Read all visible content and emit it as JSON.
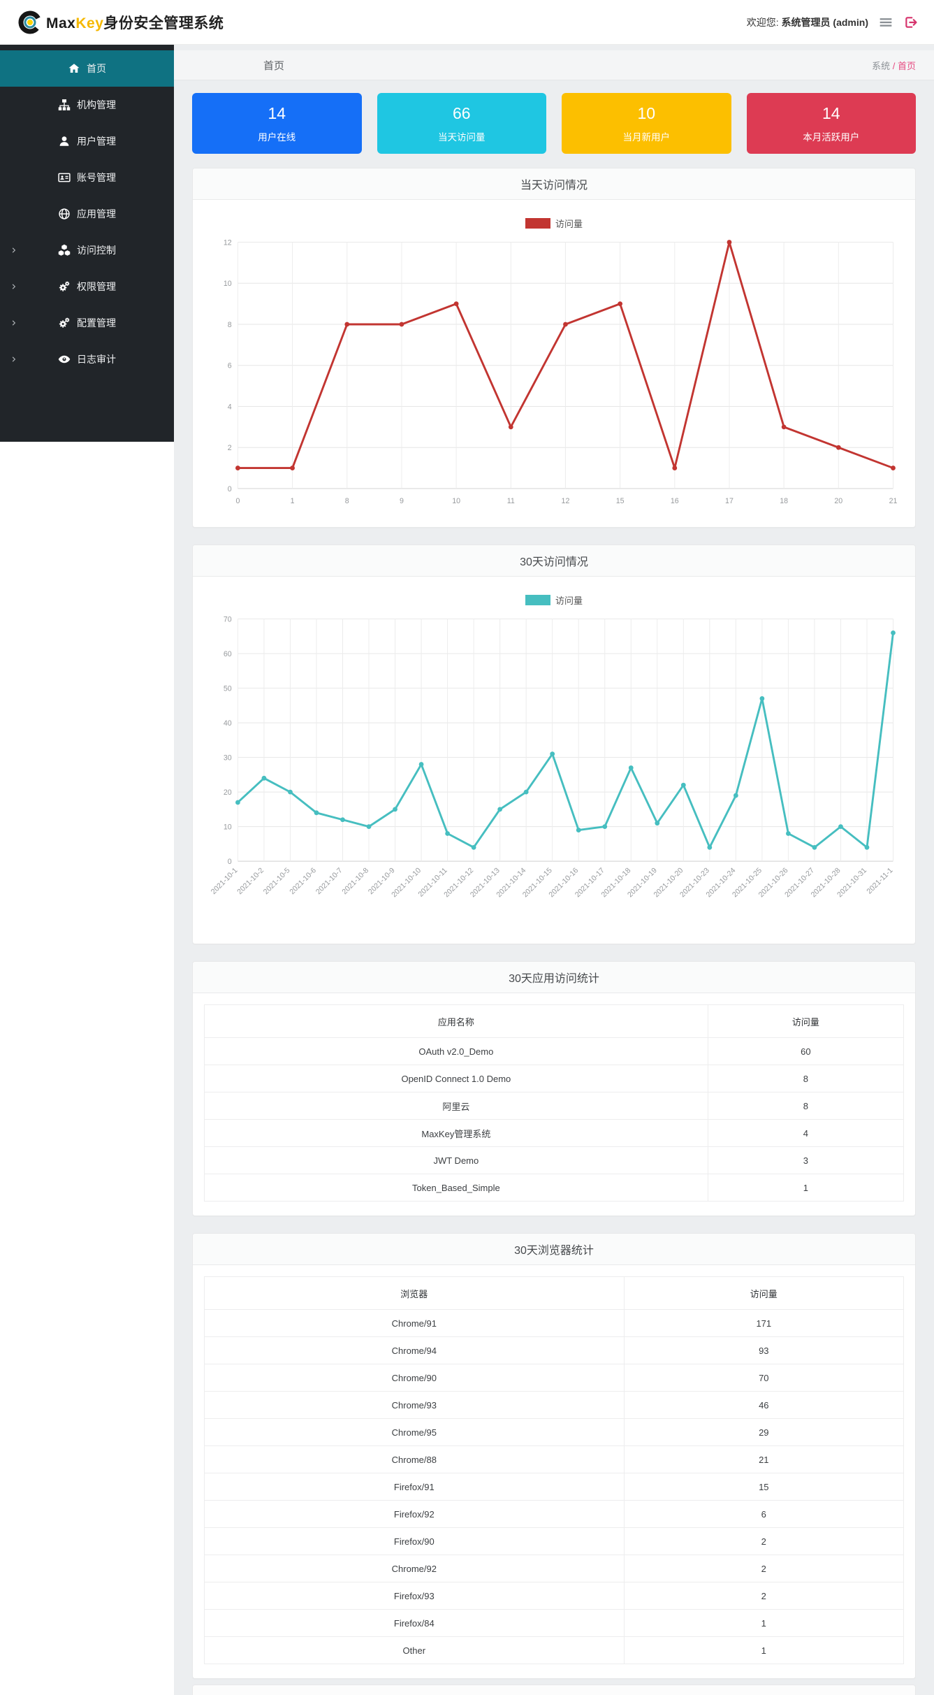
{
  "header": {
    "brand_max": "Max",
    "brand_key": "Key",
    "brand_suffix": "身份安全管理系统",
    "welcome_prefix": "欢迎您:",
    "welcome_user": "系统管理员 (admin)"
  },
  "sidebar": {
    "items": [
      {
        "label": "首页",
        "icon": "home-icon",
        "active": true,
        "has_children": false
      },
      {
        "label": "机构管理",
        "icon": "sitemap-icon",
        "active": false,
        "has_children": false
      },
      {
        "label": "用户管理",
        "icon": "user-icon",
        "active": false,
        "has_children": false
      },
      {
        "label": "账号管理",
        "icon": "id-card-icon",
        "active": false,
        "has_children": false
      },
      {
        "label": "应用管理",
        "icon": "globe-icon",
        "active": false,
        "has_children": false
      },
      {
        "label": "访问控制",
        "icon": "cubes-icon",
        "active": false,
        "has_children": true
      },
      {
        "label": "权限管理",
        "icon": "cogs-icon",
        "active": false,
        "has_children": true
      },
      {
        "label": "配置管理",
        "icon": "cogs-icon",
        "active": false,
        "has_children": true
      },
      {
        "label": "日志审计",
        "icon": "eye-icon",
        "active": false,
        "has_children": true
      }
    ]
  },
  "breadcrumb": {
    "page_title": "首页",
    "root": "系统",
    "current": "/ 首页"
  },
  "stat_cards": [
    {
      "value": "14",
      "label": "用户在线",
      "color": "#156ff7"
    },
    {
      "value": "66",
      "label": "当天访问量",
      "color": "#1fc6e2"
    },
    {
      "value": "10",
      "label": "当月新用户",
      "color": "#fcbf00"
    },
    {
      "value": "14",
      "label": "本月活跃用户",
      "color": "#dd3b53"
    }
  ],
  "chart_data": [
    {
      "type": "line",
      "title": "当天访问情况",
      "legend": "访问量",
      "categories": [
        "0",
        "1",
        "8",
        "9",
        "10",
        "11",
        "12",
        "15",
        "16",
        "17",
        "18",
        "20",
        "21"
      ],
      "values": [
        1,
        1,
        8,
        8,
        9,
        3,
        8,
        9,
        1,
        12,
        3,
        2,
        1
      ],
      "ylim": [
        0,
        12
      ],
      "ytick": 2,
      "color": "#c23531",
      "grid": true,
      "legend_position": "top-center"
    },
    {
      "type": "line",
      "title": "30天访问情况",
      "legend": "访问量",
      "categories": [
        "2021-10-1",
        "2021-10-2",
        "2021-10-5",
        "2021-10-6",
        "2021-10-7",
        "2021-10-8",
        "2021-10-9",
        "2021-10-10",
        "2021-10-11",
        "2021-10-12",
        "2021-10-13",
        "2021-10-14",
        "2021-10-15",
        "2021-10-16",
        "2021-10-17",
        "2021-10-18",
        "2021-10-19",
        "2021-10-20",
        "2021-10-23",
        "2021-10-24",
        "2021-10-25",
        "2021-10-26",
        "2021-10-27",
        "2021-10-28",
        "2021-10-31",
        "2021-11-1"
      ],
      "values": [
        17,
        24,
        20,
        14,
        12,
        10,
        15,
        28,
        8,
        4,
        15,
        20,
        31,
        9,
        10,
        27,
        11,
        22,
        4,
        19,
        47,
        8,
        4,
        10,
        4,
        66
      ],
      "ylim": [
        0,
        70
      ],
      "ytick": 10,
      "color": "#46bec0",
      "grid": true,
      "xlabel_rotation": -45,
      "legend_position": "top-center"
    },
    {
      "type": "table",
      "title": "30天应用访问统计",
      "columns": [
        "应用名称",
        "访问量"
      ],
      "rows": [
        [
          "OAuth v2.0_Demo",
          "60"
        ],
        [
          "OpenID Connect 1.0 Demo",
          "8"
        ],
        [
          "阿里云",
          "8"
        ],
        [
          "MaxKey管理系统",
          "4"
        ],
        [
          "JWT Demo",
          "3"
        ],
        [
          "Token_Based_Simple",
          "1"
        ]
      ]
    },
    {
      "type": "table",
      "title": "30天浏览器统计",
      "columns": [
        "浏览器",
        "访问量"
      ],
      "rows": [
        [
          "Chrome/91",
          "171"
        ],
        [
          "Chrome/94",
          "93"
        ],
        [
          "Chrome/90",
          "70"
        ],
        [
          "Chrome/93",
          "46"
        ],
        [
          "Chrome/95",
          "29"
        ],
        [
          "Chrome/88",
          "21"
        ],
        [
          "Firefox/91",
          "15"
        ],
        [
          "Firefox/92",
          "6"
        ],
        [
          "Firefox/90",
          "2"
        ],
        [
          "Chrome/92",
          "2"
        ],
        [
          "Firefox/93",
          "2"
        ],
        [
          "Firefox/84",
          "1"
        ],
        [
          "Other",
          "1"
        ]
      ]
    }
  ]
}
